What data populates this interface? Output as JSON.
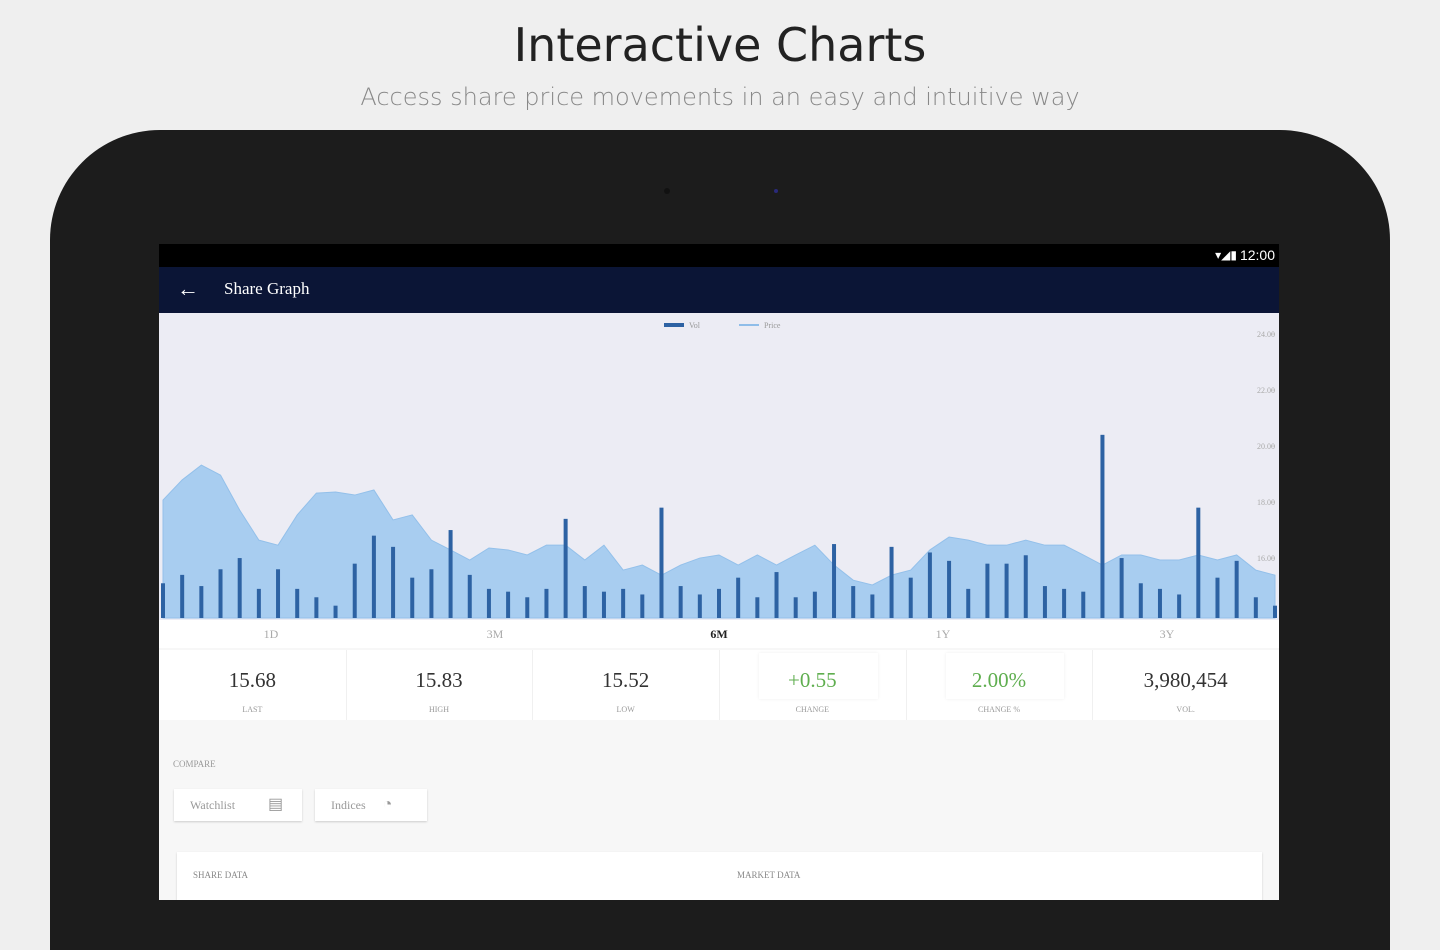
{
  "header": {
    "title": "Interactive Charts",
    "subtitle": "Access share price movements in an easy and intuitive way"
  },
  "status_bar": {
    "time": "12:00"
  },
  "app_bar": {
    "title": "Share Graph"
  },
  "chart_data": {
    "type": "bar-area",
    "series": [
      {
        "name": "Vol",
        "type": "bar",
        "color": "#2d62a3",
        "values": [
          15.1,
          15.4,
          15.0,
          15.6,
          16.0,
          14.9,
          15.6,
          14.9,
          14.6,
          14.3,
          15.8,
          16.8,
          16.4,
          15.3,
          15.6,
          17.0,
          15.4,
          14.9,
          14.8,
          14.6,
          14.9,
          17.4,
          15.0,
          14.8,
          14.9,
          14.7,
          17.8,
          15.0,
          14.7,
          14.9,
          15.3,
          14.6,
          15.5,
          14.6,
          14.8,
          16.5,
          15.0,
          14.7,
          16.4,
          15.3,
          16.2,
          15.9,
          14.9,
          15.8,
          15.8,
          16.1,
          15.0,
          14.9,
          14.8,
          20.4,
          16.0,
          15.1,
          14.9,
          14.7,
          17.8,
          15.3,
          15.9,
          14.6,
          14.3
        ]
      },
      {
        "name": "Price",
        "type": "area",
        "color": "#a8cdf0",
        "values": [
          18.07,
          18.79,
          19.32,
          18.96,
          17.71,
          16.64,
          16.46,
          17.54,
          18.32,
          18.36,
          18.25,
          18.43,
          17.36,
          17.54,
          16.64,
          16.29,
          15.93,
          16.36,
          16.29,
          16.11,
          16.46,
          16.46,
          15.93,
          16.46,
          15.57,
          15.75,
          15.39,
          15.75,
          16.0,
          16.11,
          15.75,
          16.11,
          15.75,
          16.11,
          16.46,
          15.75,
          15.21,
          15.04,
          15.39,
          15.57,
          16.29,
          16.75,
          16.64,
          16.46,
          16.46,
          16.64,
          16.46,
          16.46,
          16.11,
          15.75,
          16.11,
          16.11,
          15.93,
          15.93,
          16.11,
          15.93,
          16.11,
          15.57,
          15.39
        ]
      }
    ],
    "ylim": [
      13.86,
      24.5
    ],
    "yticks": [
      {
        "value": 16,
        "label": "16.00"
      },
      {
        "value": 18,
        "label": "18.00"
      },
      {
        "value": 20,
        "label": "20.00"
      },
      {
        "value": 22,
        "label": "22.00"
      },
      {
        "value": 24,
        "label": "24.00"
      }
    ],
    "legend": "top"
  },
  "tabs": [
    "1D",
    "3M",
    "6M",
    "1Y",
    "3Y"
  ],
  "active_tab": 2,
  "stats": [
    {
      "value": "15.68",
      "label": "LAST"
    },
    {
      "value": "15.83",
      "label": "HIGH"
    },
    {
      "value": "15.52",
      "label": "LOW"
    },
    {
      "value": "+0.55",
      "label": "CHANGE"
    },
    {
      "value": "2.00%",
      "label": "CHANGE %"
    },
    {
      "value": "3,980,454",
      "label": "VOL."
    }
  ],
  "compare": {
    "title": "COMPARE",
    "buttons": [
      "Watchlist",
      "Indices"
    ]
  },
  "sections": [
    "SHARE DATA",
    "MARKET DATA"
  ]
}
